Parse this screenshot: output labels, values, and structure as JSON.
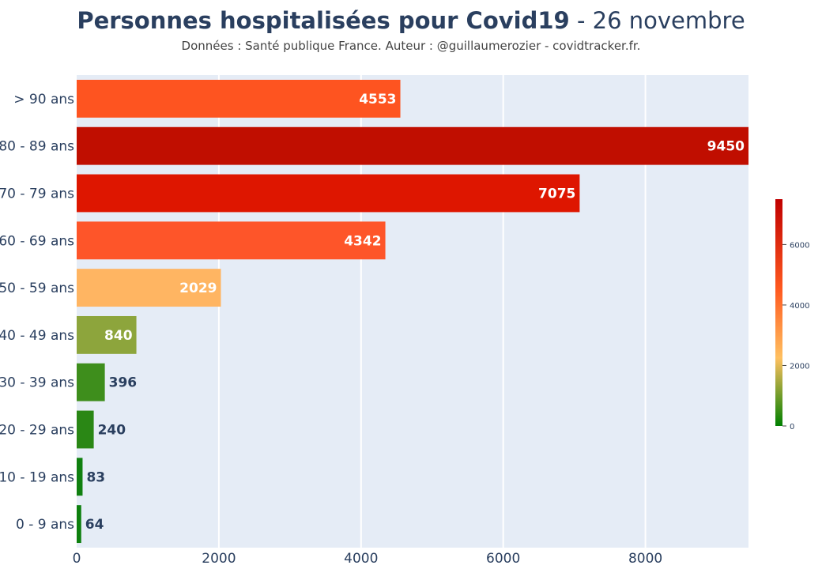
{
  "chart_data": {
    "type": "bar",
    "orientation": "horizontal",
    "title": "Personnes hospitalisées pour Covid19",
    "title_suffix": " - 26 novembre",
    "subtitle": "Données : Santé publique France. Auteur : @guillaumerozier - covidtracker.fr.",
    "categories": [
      "> 90 ans",
      "80 - 89 ans",
      "70 - 79 ans",
      "60 - 69 ans",
      "50 - 59 ans",
      "40 - 49 ans",
      "30 - 39 ans",
      "20 - 29 ans",
      "10 - 19 ans",
      "0 - 9 ans"
    ],
    "values": [
      4553,
      9450,
      7075,
      4342,
      2029,
      840,
      396,
      240,
      83,
      64
    ],
    "value_labels": [
      "4553",
      "9450",
      "7075",
      "4342",
      "2029",
      "840",
      "396",
      "240",
      "83",
      "64"
    ],
    "colors": [
      "#fe5420",
      "#c00e00",
      "#de1600",
      "#fe5529",
      "#ffb562",
      "#8da53c",
      "#3e8e1c",
      "#2a8715",
      "#108010",
      "#0e800e"
    ],
    "xlim": [
      0,
      9450
    ],
    "x_ticks": [
      0,
      2000,
      4000,
      6000,
      8000
    ],
    "x_tick_labels": [
      "0",
      "2000",
      "4000",
      "6000",
      "8000"
    ],
    "grid": true,
    "colorbar": {
      "range": [
        0,
        7500
      ],
      "ticks": [
        0,
        2000,
        4000,
        6000
      ],
      "tick_labels": [
        "0",
        "2000",
        "4000",
        "6000"
      ],
      "colorscale": [
        "#008000",
        "#ffc060",
        "#ff5a20",
        "#c00000"
      ]
    }
  }
}
